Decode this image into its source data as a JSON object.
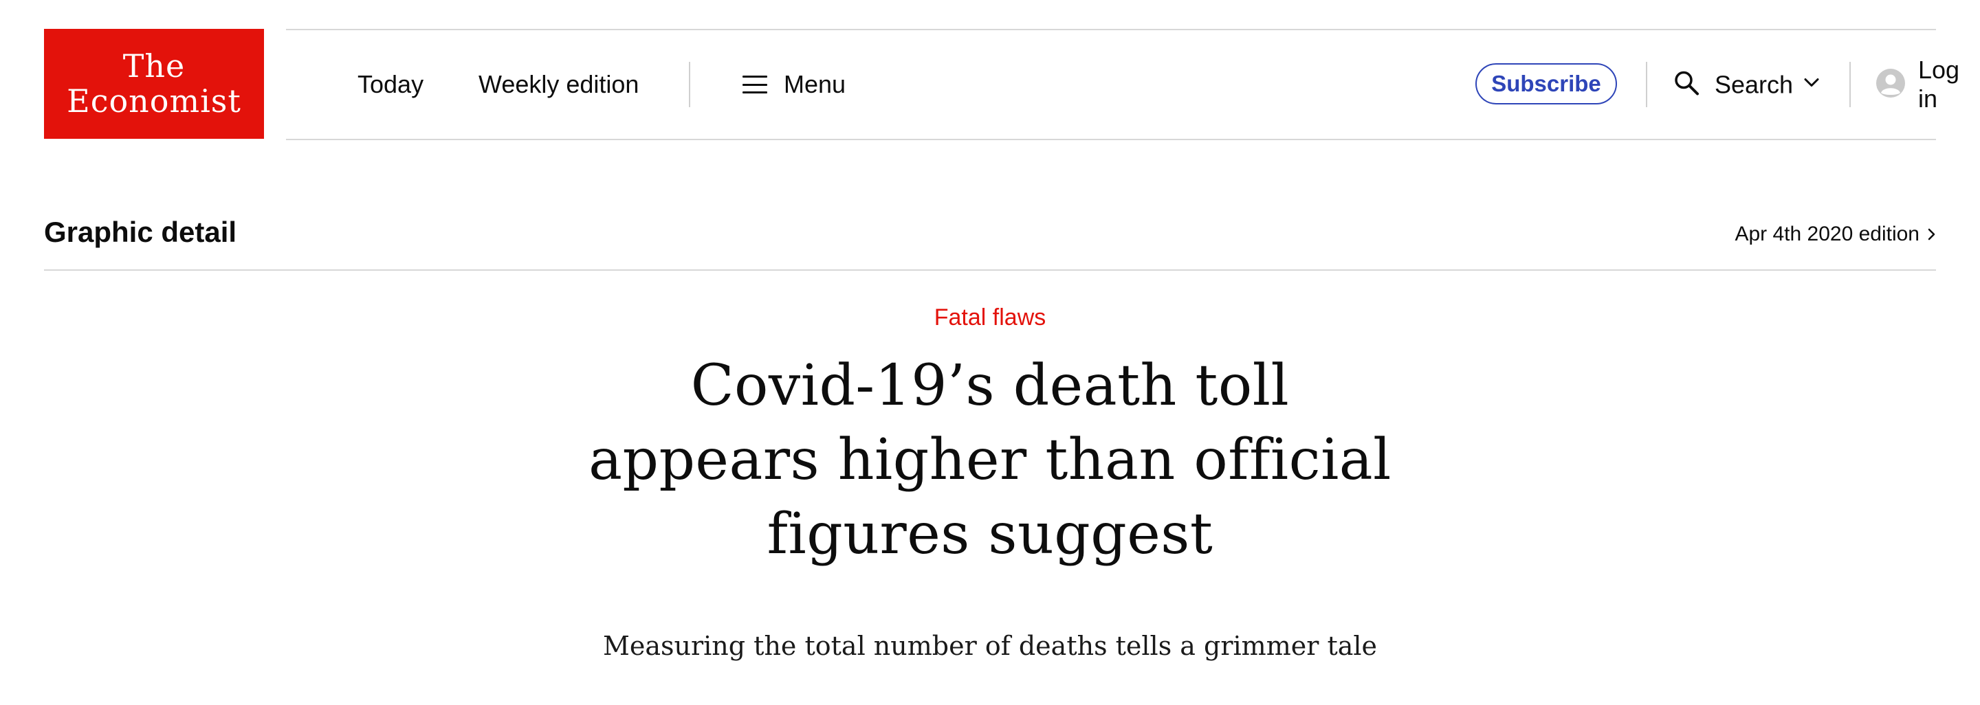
{
  "header": {
    "logo": {
      "line1": "The",
      "line2": "Economist",
      "color": "#e3120b"
    },
    "nav": {
      "today": "Today",
      "weekly_edition": "Weekly edition",
      "menu": "Menu"
    },
    "subscribe": "Subscribe",
    "search": "Search",
    "login": "Log in",
    "icons": {
      "menu": "hamburger-icon",
      "search": "search-icon",
      "dropdown": "chevron-down-icon",
      "account": "user-circle-icon"
    }
  },
  "section": {
    "title": "Graphic detail",
    "edition": "Apr 4th 2020 edition",
    "edition_icon": "chevron-right-icon"
  },
  "article": {
    "flytitle": "Fatal flaws",
    "headline": "Covid-19’s death toll appears higher than official figures suggest",
    "standfirst": "Measuring the total number of deaths tells a grimmer tale"
  },
  "colors": {
    "brand_red": "#e3120b",
    "accent_blue": "#2e45b8"
  }
}
